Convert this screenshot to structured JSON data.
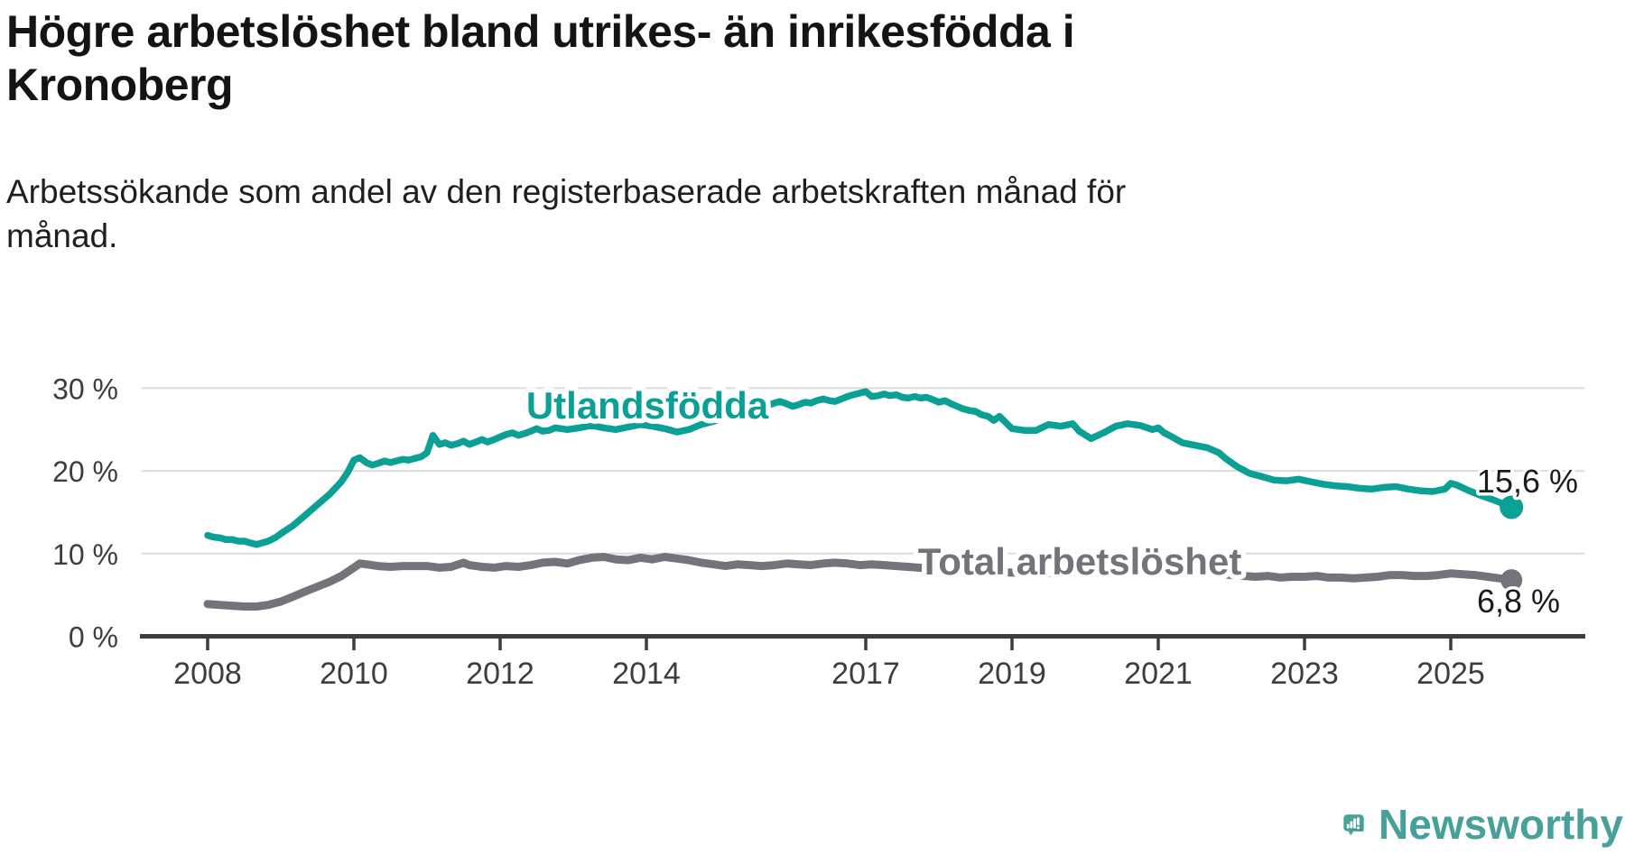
{
  "header": {
    "title_lines": [
      "Högre arbetslöshet bland utrikes- än inrikesfödda i",
      "Kronoberg"
    ],
    "subtitle_lines": [
      "Arbetssökande som andel av den registerbaserade arbetskraften månad för",
      "månad."
    ]
  },
  "footer": {
    "brand": "Newsworthy"
  },
  "colors": {
    "utlandsfodda": "#0aa095",
    "total": "#76727b",
    "axis": "#3d3d3d",
    "grid": "#dcdcdc",
    "value_label": "#1b1b1b",
    "logo_teal": "#4ba29b"
  },
  "chart_data": {
    "type": "line",
    "title": "Högre arbetslöshet bland utrikes- än inrikesfödda i Kronoberg",
    "subtitle": "Arbetssökande som andel av den registerbaserade arbetskraften månad för månad.",
    "unit": "%",
    "x_axis": {
      "min": 2008,
      "max": 2025.83,
      "ticks": [
        2008,
        2010,
        2012,
        2014,
        2017,
        2019,
        2021,
        2023,
        2025
      ]
    },
    "y_axis": {
      "min": 0,
      "max": 30,
      "grid": true,
      "ticks": [
        {
          "value": 0,
          "label": "0 %"
        },
        {
          "value": 10,
          "label": "10 %"
        },
        {
          "value": 20,
          "label": "20 %"
        },
        {
          "value": 30,
          "label": "30 %"
        }
      ]
    },
    "series": [
      {
        "id": "utlandsfodda",
        "label": "Utlandsfödda",
        "color_key": "utlandsfodda",
        "stroke_width": 7.5,
        "end_value": 15.6,
        "end_label": "15,6 %",
        "points": [
          [
            2008.0,
            12.2
          ],
          [
            2008.08,
            12.0
          ],
          [
            2008.17,
            11.9
          ],
          [
            2008.25,
            11.7
          ],
          [
            2008.33,
            11.7
          ],
          [
            2008.42,
            11.5
          ],
          [
            2008.5,
            11.5
          ],
          [
            2008.58,
            11.3
          ],
          [
            2008.67,
            11.1
          ],
          [
            2008.75,
            11.3
          ],
          [
            2008.83,
            11.5
          ],
          [
            2008.92,
            11.9
          ],
          [
            2009.0,
            12.4
          ],
          [
            2009.17,
            13.4
          ],
          [
            2009.33,
            14.6
          ],
          [
            2009.5,
            15.9
          ],
          [
            2009.67,
            17.2
          ],
          [
            2009.83,
            18.7
          ],
          [
            2009.92,
            19.9
          ],
          [
            2010.0,
            21.3
          ],
          [
            2010.08,
            21.6
          ],
          [
            2010.17,
            21.0
          ],
          [
            2010.25,
            20.7
          ],
          [
            2010.33,
            20.9
          ],
          [
            2010.42,
            21.2
          ],
          [
            2010.5,
            21.0
          ],
          [
            2010.58,
            21.2
          ],
          [
            2010.67,
            21.4
          ],
          [
            2010.75,
            21.3
          ],
          [
            2010.83,
            21.5
          ],
          [
            2010.92,
            21.7
          ],
          [
            2011.0,
            22.2
          ],
          [
            2011.08,
            24.3
          ],
          [
            2011.17,
            23.2
          ],
          [
            2011.25,
            23.4
          ],
          [
            2011.33,
            23.1
          ],
          [
            2011.42,
            23.3
          ],
          [
            2011.5,
            23.6
          ],
          [
            2011.58,
            23.2
          ],
          [
            2011.67,
            23.5
          ],
          [
            2011.75,
            23.8
          ],
          [
            2011.83,
            23.5
          ],
          [
            2011.92,
            23.8
          ],
          [
            2012.0,
            24.1
          ],
          [
            2012.08,
            24.4
          ],
          [
            2012.17,
            24.6
          ],
          [
            2012.25,
            24.3
          ],
          [
            2012.33,
            24.5
          ],
          [
            2012.42,
            24.8
          ],
          [
            2012.5,
            25.1
          ],
          [
            2012.58,
            24.8
          ],
          [
            2012.67,
            24.9
          ],
          [
            2012.75,
            25.2
          ],
          [
            2012.92,
            25.0
          ],
          [
            2013.08,
            25.2
          ],
          [
            2013.25,
            25.5
          ],
          [
            2013.42,
            25.2
          ],
          [
            2013.58,
            25.0
          ],
          [
            2013.75,
            25.3
          ],
          [
            2013.92,
            25.6
          ],
          [
            2014.08,
            25.4
          ],
          [
            2014.25,
            25.1
          ],
          [
            2014.42,
            24.7
          ],
          [
            2014.58,
            25.0
          ],
          [
            2014.75,
            25.6
          ],
          [
            2014.92,
            26.0
          ],
          [
            2015.08,
            26.4
          ],
          [
            2015.25,
            26.9
          ],
          [
            2015.42,
            27.3
          ],
          [
            2015.58,
            27.7
          ],
          [
            2015.75,
            28.2
          ],
          [
            2015.83,
            28.4
          ],
          [
            2015.92,
            28.1
          ],
          [
            2016.0,
            27.8
          ],
          [
            2016.08,
            28.0
          ],
          [
            2016.17,
            28.3
          ],
          [
            2016.25,
            28.2
          ],
          [
            2016.33,
            28.5
          ],
          [
            2016.42,
            28.7
          ],
          [
            2016.5,
            28.5
          ],
          [
            2016.58,
            28.4
          ],
          [
            2016.67,
            28.7
          ],
          [
            2016.75,
            29.0
          ],
          [
            2016.83,
            29.2
          ],
          [
            2016.92,
            29.4
          ],
          [
            2017.0,
            29.6
          ],
          [
            2017.08,
            29.0
          ],
          [
            2017.17,
            29.1
          ],
          [
            2017.25,
            29.3
          ],
          [
            2017.33,
            29.1
          ],
          [
            2017.42,
            29.2
          ],
          [
            2017.5,
            28.9
          ],
          [
            2017.58,
            28.8
          ],
          [
            2017.67,
            29.0
          ],
          [
            2017.75,
            28.8
          ],
          [
            2017.83,
            28.9
          ],
          [
            2017.92,
            28.6
          ],
          [
            2018.0,
            28.3
          ],
          [
            2018.08,
            28.5
          ],
          [
            2018.17,
            28.1
          ],
          [
            2018.25,
            27.8
          ],
          [
            2018.33,
            27.5
          ],
          [
            2018.42,
            27.3
          ],
          [
            2018.5,
            27.2
          ],
          [
            2018.58,
            26.8
          ],
          [
            2018.67,
            26.6
          ],
          [
            2018.75,
            26.1
          ],
          [
            2018.83,
            26.6
          ],
          [
            2018.92,
            25.8
          ],
          [
            2019.0,
            25.1
          ],
          [
            2019.17,
            24.9
          ],
          [
            2019.33,
            24.9
          ],
          [
            2019.5,
            25.6
          ],
          [
            2019.67,
            25.4
          ],
          [
            2019.83,
            25.7
          ],
          [
            2019.92,
            24.8
          ],
          [
            2020.08,
            23.9
          ],
          [
            2020.25,
            24.6
          ],
          [
            2020.42,
            25.4
          ],
          [
            2020.58,
            25.7
          ],
          [
            2020.75,
            25.5
          ],
          [
            2020.92,
            25.0
          ],
          [
            2021.0,
            25.2
          ],
          [
            2021.08,
            24.6
          ],
          [
            2021.17,
            24.2
          ],
          [
            2021.33,
            23.4
          ],
          [
            2021.5,
            23.1
          ],
          [
            2021.67,
            22.8
          ],
          [
            2021.83,
            22.2
          ],
          [
            2021.92,
            21.5
          ],
          [
            2022.08,
            20.5
          ],
          [
            2022.25,
            19.7
          ],
          [
            2022.42,
            19.3
          ],
          [
            2022.58,
            18.9
          ],
          [
            2022.75,
            18.8
          ],
          [
            2022.92,
            19.0
          ],
          [
            2023.08,
            18.7
          ],
          [
            2023.25,
            18.4
          ],
          [
            2023.42,
            18.2
          ],
          [
            2023.58,
            18.1
          ],
          [
            2023.75,
            17.9
          ],
          [
            2023.92,
            17.8
          ],
          [
            2024.08,
            18.0
          ],
          [
            2024.25,
            18.1
          ],
          [
            2024.42,
            17.8
          ],
          [
            2024.58,
            17.6
          ],
          [
            2024.75,
            17.5
          ],
          [
            2024.92,
            17.8
          ],
          [
            2025.0,
            18.5
          ],
          [
            2025.08,
            18.3
          ],
          [
            2025.25,
            17.6
          ],
          [
            2025.42,
            17.0
          ],
          [
            2025.58,
            16.5
          ],
          [
            2025.75,
            15.9
          ],
          [
            2025.83,
            15.6
          ]
        ]
      },
      {
        "id": "total-arbetsloshet",
        "label": "Total arbetslöshet",
        "color_key": "total",
        "stroke_width": 9,
        "end_value": 6.8,
        "end_label": "6,8 %",
        "points": [
          [
            2008.0,
            3.9
          ],
          [
            2008.17,
            3.8
          ],
          [
            2008.33,
            3.7
          ],
          [
            2008.5,
            3.6
          ],
          [
            2008.67,
            3.6
          ],
          [
            2008.83,
            3.8
          ],
          [
            2009.0,
            4.2
          ],
          [
            2009.17,
            4.8
          ],
          [
            2009.33,
            5.4
          ],
          [
            2009.5,
            6.0
          ],
          [
            2009.67,
            6.6
          ],
          [
            2009.83,
            7.3
          ],
          [
            2010.0,
            8.3
          ],
          [
            2010.08,
            8.8
          ],
          [
            2010.17,
            8.7
          ],
          [
            2010.33,
            8.5
          ],
          [
            2010.5,
            8.4
          ],
          [
            2010.67,
            8.5
          ],
          [
            2010.83,
            8.5
          ],
          [
            2011.0,
            8.5
          ],
          [
            2011.17,
            8.3
          ],
          [
            2011.33,
            8.4
          ],
          [
            2011.5,
            8.9
          ],
          [
            2011.58,
            8.6
          ],
          [
            2011.75,
            8.4
          ],
          [
            2011.92,
            8.3
          ],
          [
            2012.08,
            8.5
          ],
          [
            2012.25,
            8.4
          ],
          [
            2012.42,
            8.6
          ],
          [
            2012.58,
            8.9
          ],
          [
            2012.75,
            9.0
          ],
          [
            2012.92,
            8.8
          ],
          [
            2013.08,
            9.2
          ],
          [
            2013.25,
            9.5
          ],
          [
            2013.42,
            9.6
          ],
          [
            2013.58,
            9.3
          ],
          [
            2013.75,
            9.2
          ],
          [
            2013.92,
            9.5
          ],
          [
            2014.08,
            9.3
          ],
          [
            2014.25,
            9.6
          ],
          [
            2014.42,
            9.4
          ],
          [
            2014.58,
            9.2
          ],
          [
            2014.75,
            8.9
          ],
          [
            2014.92,
            8.7
          ],
          [
            2015.08,
            8.5
          ],
          [
            2015.25,
            8.7
          ],
          [
            2015.42,
            8.6
          ],
          [
            2015.58,
            8.5
          ],
          [
            2015.75,
            8.6
          ],
          [
            2015.92,
            8.8
          ],
          [
            2016.08,
            8.7
          ],
          [
            2016.25,
            8.6
          ],
          [
            2016.42,
            8.8
          ],
          [
            2016.58,
            8.9
          ],
          [
            2016.75,
            8.8
          ],
          [
            2016.92,
            8.6
          ],
          [
            2017.08,
            8.7
          ],
          [
            2017.25,
            8.6
          ],
          [
            2017.42,
            8.5
          ],
          [
            2017.58,
            8.4
          ],
          [
            2018.0,
            8.1
          ],
          [
            2018.5,
            7.9
          ],
          [
            2019.0,
            7.7
          ],
          [
            2019.5,
            7.6
          ],
          [
            2020.0,
            7.9
          ],
          [
            2020.5,
            8.7
          ],
          [
            2021.0,
            8.5
          ],
          [
            2021.5,
            7.9
          ],
          [
            2022.0,
            7.4
          ],
          [
            2022.33,
            7.2
          ],
          [
            2022.5,
            7.3
          ],
          [
            2022.67,
            7.1
          ],
          [
            2022.83,
            7.2
          ],
          [
            2023.0,
            7.2
          ],
          [
            2023.17,
            7.3
          ],
          [
            2023.33,
            7.1
          ],
          [
            2023.5,
            7.1
          ],
          [
            2023.67,
            7.0
          ],
          [
            2023.83,
            7.1
          ],
          [
            2024.0,
            7.2
          ],
          [
            2024.17,
            7.4
          ],
          [
            2024.33,
            7.4
          ],
          [
            2024.5,
            7.3
          ],
          [
            2024.67,
            7.3
          ],
          [
            2024.83,
            7.4
          ],
          [
            2025.0,
            7.6
          ],
          [
            2025.17,
            7.5
          ],
          [
            2025.33,
            7.4
          ],
          [
            2025.5,
            7.2
          ],
          [
            2025.67,
            7.0
          ],
          [
            2025.83,
            6.8
          ]
        ]
      }
    ]
  }
}
